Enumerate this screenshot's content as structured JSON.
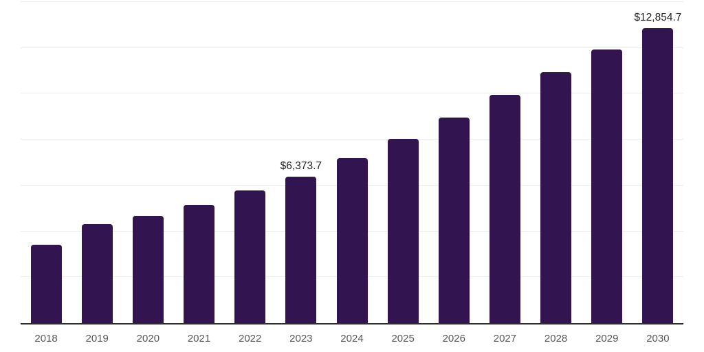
{
  "chart_data": {
    "type": "bar",
    "title": "",
    "xlabel": "",
    "ylabel": "",
    "categories": [
      "2018",
      "2019",
      "2020",
      "2021",
      "2022",
      "2023",
      "2024",
      "2025",
      "2026",
      "2027",
      "2028",
      "2029",
      "2030"
    ],
    "values": [
      3430,
      4330,
      4675,
      5145,
      5775,
      6373.7,
      7190,
      8045,
      8975,
      9965,
      10955,
      11945,
      12854.7
    ],
    "data_labels": [
      {
        "category": "2023",
        "text": "$6,373.7"
      },
      {
        "category": "2030",
        "text": "$12,854.7"
      }
    ],
    "ylim": [
      0,
      14000
    ],
    "gridline_step": 2000,
    "grid": "horizontal",
    "y_axis_tick_labels_visible": false,
    "legend": "none",
    "bar_color": "#321450"
  },
  "style": {
    "background_color": "#ffffff",
    "bar_color": "#321450",
    "gridline_color": "#ededee",
    "axis_line_color": "#2e2e2e",
    "tick_label_color": "#55565a",
    "data_label_color": "#1f1f1f"
  }
}
